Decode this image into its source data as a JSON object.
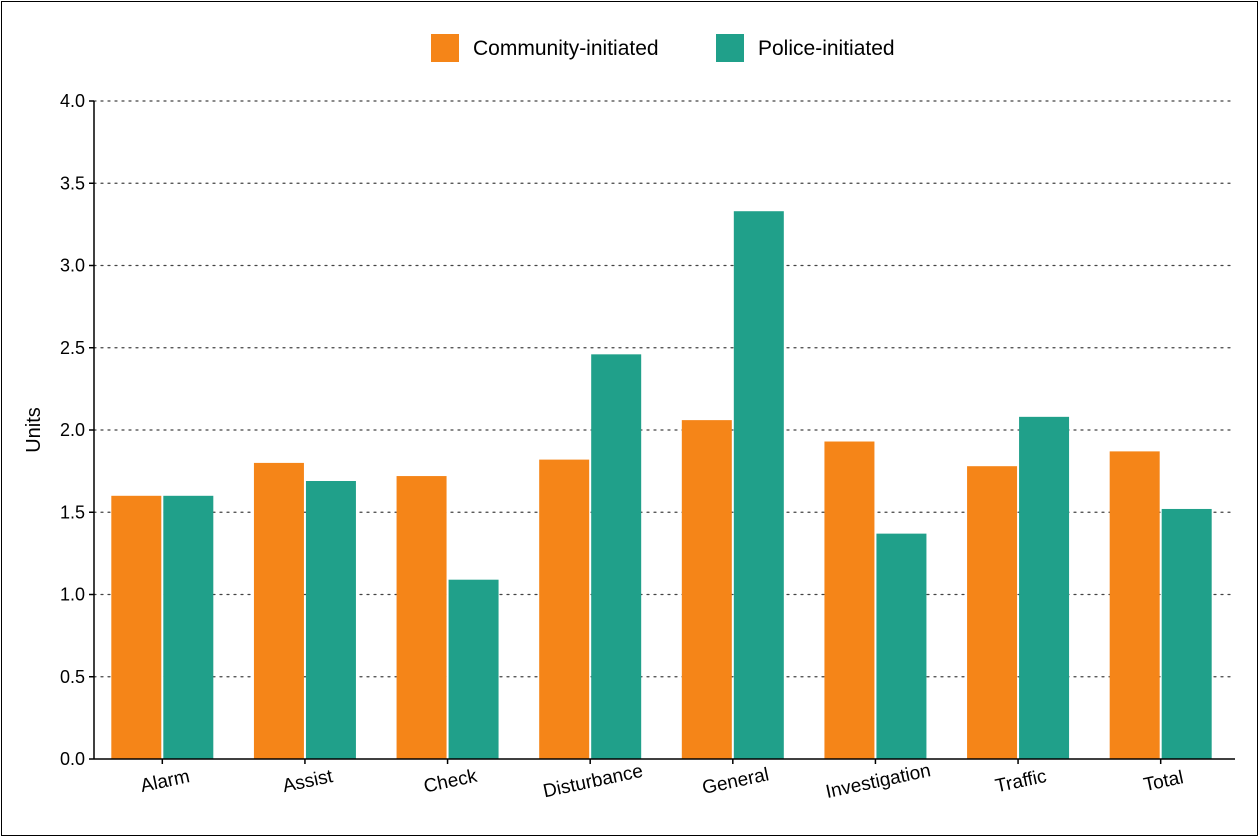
{
  "chart_data": {
    "type": "bar",
    "categories": [
      "Alarm",
      "Assist",
      "Check",
      "Disturbance",
      "General",
      "Investigation",
      "Traffic",
      "Total"
    ],
    "series": [
      {
        "name": "Community-initiated",
        "color": "#F58518",
        "values": [
          1.6,
          1.8,
          1.72,
          1.82,
          2.06,
          1.93,
          1.78,
          1.87
        ]
      },
      {
        "name": "Police-initiated",
        "color": "#20A08A",
        "values": [
          1.6,
          1.69,
          1.09,
          2.46,
          3.33,
          1.37,
          2.08,
          1.52
        ]
      }
    ],
    "ylabel": "Units",
    "xlabel": "",
    "ylim": [
      0,
      4.0
    ],
    "yticks": [
      "0.0",
      "0.5",
      "1.0",
      "1.5",
      "2.0",
      "2.5",
      "3.0",
      "3.5",
      "4.0"
    ],
    "ytick_values": [
      0,
      0.5,
      1.0,
      1.5,
      2.0,
      2.5,
      3.0,
      3.5,
      4.0
    ],
    "grid": "horizontal-dotted",
    "legend_position": "top-center"
  }
}
